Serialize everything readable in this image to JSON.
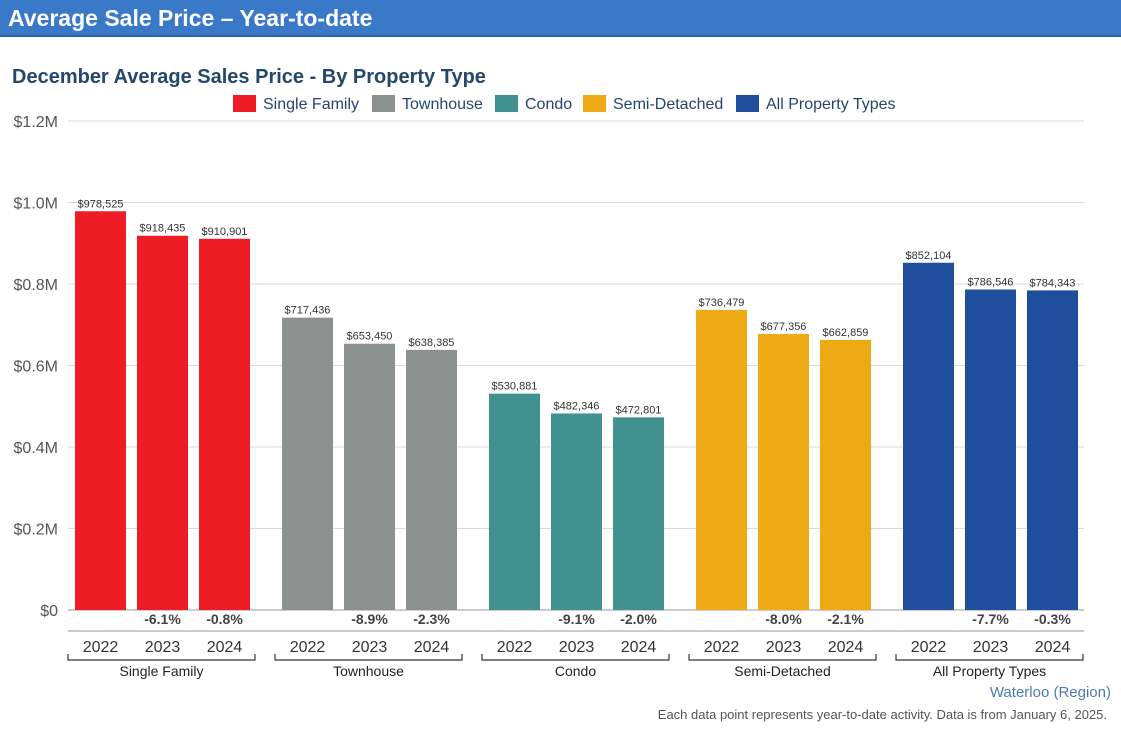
{
  "header": {
    "title": "Average Sale Price – Year-to-date"
  },
  "chart_data": {
    "type": "bar",
    "title": "December Average Sales Price - By Property Type",
    "ylim": [
      0,
      1200000
    ],
    "yticks": [
      {
        "value": 0,
        "label": "$0"
      },
      {
        "value": 200000,
        "label": "$0.2M"
      },
      {
        "value": 400000,
        "label": "$0.4M"
      },
      {
        "value": 600000,
        "label": "$0.6M"
      },
      {
        "value": 800000,
        "label": "$0.8M"
      },
      {
        "value": 1000000,
        "label": "$1.0M"
      },
      {
        "value": 1200000,
        "label": "$1.2M"
      }
    ],
    "grid": true,
    "legend_position": "top-center",
    "years": [
      "2022",
      "2023",
      "2024"
    ],
    "groups": [
      {
        "name": "Single Family",
        "color": "#ee1c25",
        "values": [
          978525,
          918435,
          910901
        ],
        "value_labels": [
          "$978,525",
          "$918,435",
          "$910,901"
        ],
        "changes": [
          "",
          "-6.1%",
          "-0.8%"
        ]
      },
      {
        "name": "Townhouse",
        "color": "#8a918f",
        "values": [
          717436,
          653450,
          638385
        ],
        "value_labels": [
          "$717,436",
          "$653,450",
          "$638,385"
        ],
        "changes": [
          "",
          "-8.9%",
          "-2.3%"
        ]
      },
      {
        "name": "Condo",
        "color": "#429191",
        "values": [
          530881,
          482346,
          472801
        ],
        "value_labels": [
          "$530,881",
          "$482,346",
          "$472,801"
        ],
        "changes": [
          "",
          "-9.1%",
          "-2.0%"
        ]
      },
      {
        "name": "Semi-Detached",
        "color": "#edaa14",
        "values": [
          736479,
          677356,
          662859
        ],
        "value_labels": [
          "$736,479",
          "$677,356",
          "$662,859"
        ],
        "changes": [
          "",
          "-8.0%",
          "-2.1%"
        ]
      },
      {
        "name": "All Property Types",
        "color": "#1f4f9c",
        "values": [
          852104,
          786546,
          784343
        ],
        "value_labels": [
          "$852,104",
          "$786,546",
          "$784,343"
        ],
        "changes": [
          "",
          "-7.7%",
          "-0.3%"
        ]
      }
    ]
  },
  "footer": {
    "region": "Waterloo (Region)",
    "note": "Each data point represents year-to-date activity. Data is from January 6, 2025."
  }
}
